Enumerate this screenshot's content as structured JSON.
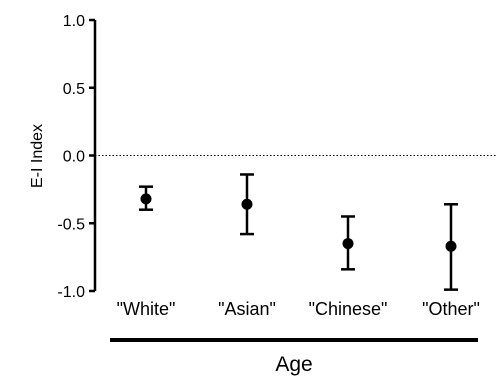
{
  "chart_data": {
    "type": "scatter",
    "ylabel": "E-I Index",
    "ylim": [
      -1.0,
      1.0
    ],
    "yticks": [
      "1.0",
      "0.5",
      "0.0",
      "-0.5",
      "-1.0"
    ],
    "ytick_values": [
      1.0,
      0.5,
      0.0,
      -0.5,
      -1.0
    ],
    "reference_line": {
      "y": 0.0,
      "style": "dotted"
    },
    "group_label": "Age",
    "categories": [
      "\"White\"",
      "\"Asian\"",
      "\"Chinese\"",
      "\"Other\""
    ],
    "series": [
      {
        "mean": [
          -0.32,
          -0.36,
          -0.65,
          -0.67
        ],
        "lower": [
          -0.4,
          -0.58,
          -0.84,
          -0.99
        ],
        "upper": [
          -0.23,
          -0.14,
          -0.45,
          -0.36
        ]
      }
    ],
    "grid": false,
    "legend": "none",
    "colors": {
      "marker": "#000000",
      "axis": "#000000"
    }
  }
}
